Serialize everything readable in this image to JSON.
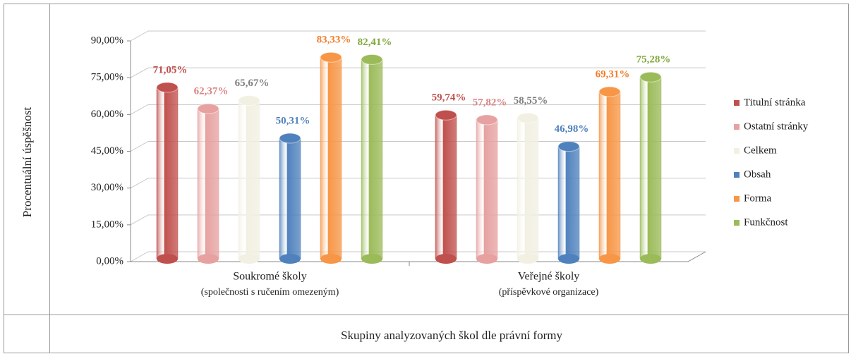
{
  "chart_data": {
    "type": "bar",
    "xlabel": "Skupiny analyzovaných škol dle právní formy",
    "ylabel": "Procentuální úspěšnost",
    "categories": [
      [
        "Soukromé školy",
        "(společnosti s ručením omezeným)"
      ],
      [
        "Veřejné školy",
        "(příspěvkové organizace)"
      ]
    ],
    "series": [
      {
        "name": "Titulní stránka",
        "color": "#c0504d",
        "label_color": "#c0504d",
        "values": [
          71.05,
          59.74
        ],
        "value_labels": [
          "71,05%",
          "59,74%"
        ]
      },
      {
        "name": "Ostatní stránky",
        "color": "#e6a1a0",
        "label_color": "#d98584",
        "values": [
          62.37,
          57.82
        ],
        "value_labels": [
          "62,37%",
          "57,82%"
        ]
      },
      {
        "name": "Celkem",
        "color": "#f2f0e2",
        "label_color": "#7f7f7f",
        "values": [
          65.67,
          58.55
        ],
        "value_labels": [
          "65,67%",
          "58,55%"
        ]
      },
      {
        "name": "Obsah",
        "color": "#4f81bd",
        "label_color": "#4f81bd",
        "values": [
          50.31,
          46.98
        ],
        "value_labels": [
          "50,31%",
          "46,98%"
        ]
      },
      {
        "name": "Forma",
        "color": "#f79646",
        "label_color": "#f07e2a",
        "values": [
          83.33,
          69.31
        ],
        "value_labels": [
          "83,33%",
          "69,31%"
        ]
      },
      {
        "name": "Funkčnost",
        "color": "#9bbb59",
        "label_color": "#82a83c",
        "values": [
          82.41,
          75.28
        ],
        "value_labels": [
          "82,41%",
          "75,28%"
        ]
      }
    ],
    "ylim": [
      0,
      90
    ],
    "yticks": [
      {
        "value": 0,
        "label": "0,00%"
      },
      {
        "value": 15,
        "label": "15,00%"
      },
      {
        "value": 30,
        "label": "30,00%"
      },
      {
        "value": 45,
        "label": "45,00%"
      },
      {
        "value": 60,
        "label": "60,00%"
      },
      {
        "value": 75,
        "label": "75,00%"
      },
      {
        "value": 90,
        "label": "90,00%"
      }
    ],
    "grid": true,
    "legend": "right"
  }
}
